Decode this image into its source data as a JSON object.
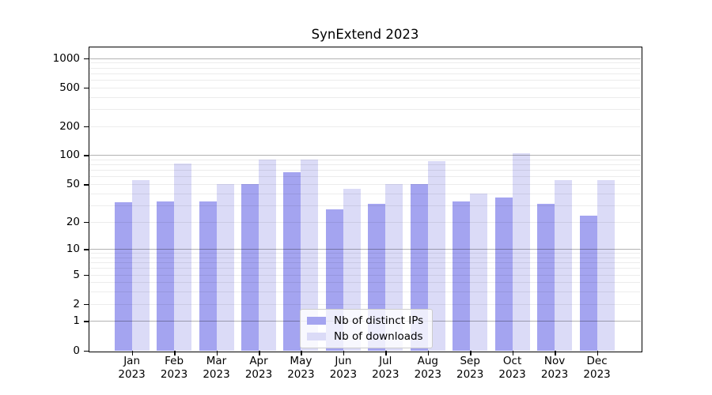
{
  "title": "SynExtend 2023",
  "chart_data": {
    "type": "bar",
    "title": "SynExtend 2023",
    "categories": [
      "Jan",
      "Feb",
      "Mar",
      "Apr",
      "May",
      "Jun",
      "Jul",
      "Aug",
      "Sep",
      "Oct",
      "Nov",
      "Dec"
    ],
    "category_year": "2023",
    "series": [
      {
        "name": "Nb of distinct IPs",
        "color": "#a4a4f0",
        "values": [
          32,
          33,
          33,
          50,
          67,
          27,
          31,
          50,
          33,
          36,
          31,
          23
        ]
      },
      {
        "name": "Nb of downloads",
        "color": "#dbdbf7",
        "values": [
          55,
          82,
          50,
          90,
          90,
          45,
          50,
          87,
          40,
          104,
          55,
          55
        ]
      }
    ],
    "xlabel": "",
    "ylabel": "",
    "y_ticks": [
      0,
      1,
      2,
      5,
      10,
      20,
      50,
      100,
      200,
      500,
      1000
    ],
    "y_scale": "log10(value+1)",
    "ylim": [
      0,
      1300
    ],
    "grid": "horizontal, minor lines at 2-9 per decade",
    "legend_position": "inside-bottom-center"
  },
  "legend": {
    "items": [
      {
        "label": "Nb of distinct IPs"
      },
      {
        "label": "Nb of downloads"
      }
    ]
  }
}
